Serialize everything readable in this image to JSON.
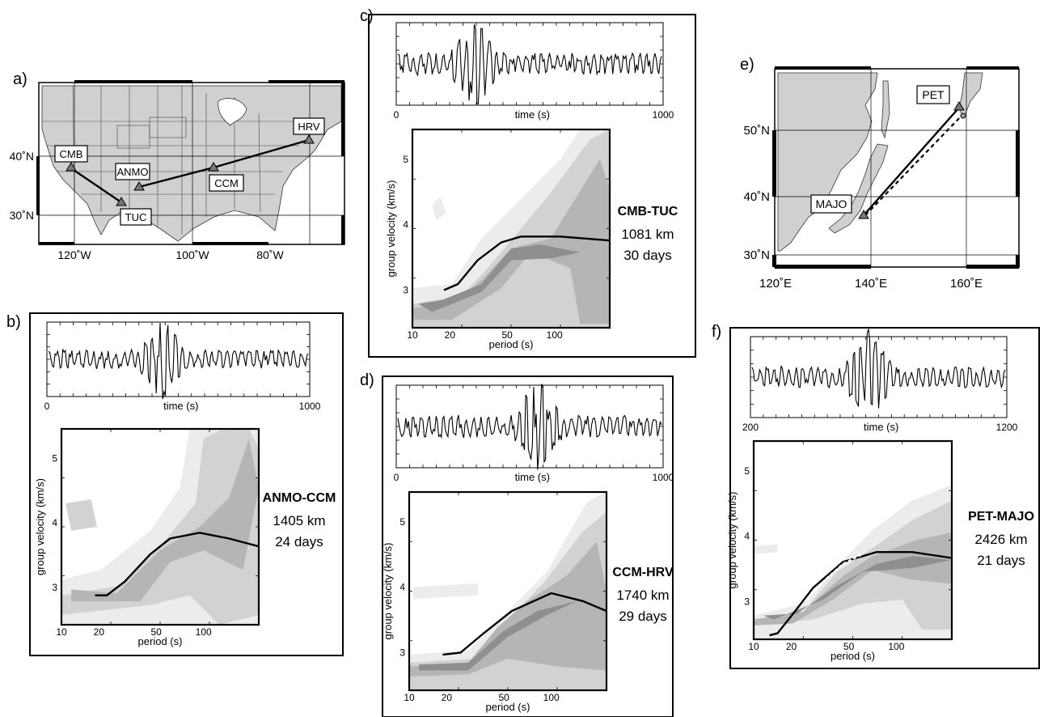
{
  "panels": {
    "a": {
      "letter": "a)",
      "lon_ticks": [
        "120˚W",
        "100˚W",
        "80˚W"
      ],
      "lat_ticks": [
        "40˚N",
        "30˚N"
      ],
      "stations": [
        "CMB",
        "ANMO",
        "TUC",
        "CCM",
        "HRV"
      ]
    },
    "b": {
      "letter": "b)",
      "pair": "ANMO-CCM",
      "distance": "1405 km",
      "duration": "24 days",
      "time_ticks": [
        "0",
        "1000"
      ],
      "time_label": "time (s)"
    },
    "c": {
      "letter": "c)",
      "pair": "CMB-TUC",
      "distance": "1081 km",
      "duration": "30 days",
      "time_ticks": [
        "0",
        "1000"
      ],
      "time_label": "time (s)"
    },
    "d": {
      "letter": "d)",
      "pair": "CCM-HRV",
      "distance": "1740 km",
      "duration": "29 days",
      "time_ticks": [
        "0",
        "1000"
      ],
      "time_label": "time (s)"
    },
    "e": {
      "letter": "e)",
      "lon_ticks": [
        "120˚E",
        "140˚E",
        "160˚E"
      ],
      "lat_ticks": [
        "50˚N",
        "40˚N",
        "30˚N"
      ],
      "stations": [
        "PET",
        "MAJO"
      ]
    },
    "f": {
      "letter": "f)",
      "pair": "PET-MAJO",
      "distance": "2426 km",
      "duration": "21 days",
      "time_ticks": [
        "200",
        "1200"
      ],
      "time_label": "time (s)"
    }
  },
  "ftan": {
    "xlabel": "period (s)",
    "ylabel": "group velocity (km/s)",
    "x_ticks": [
      "10",
      "20",
      "50",
      "100"
    ],
    "y_ticks": [
      "3",
      "4",
      "5"
    ]
  }
}
